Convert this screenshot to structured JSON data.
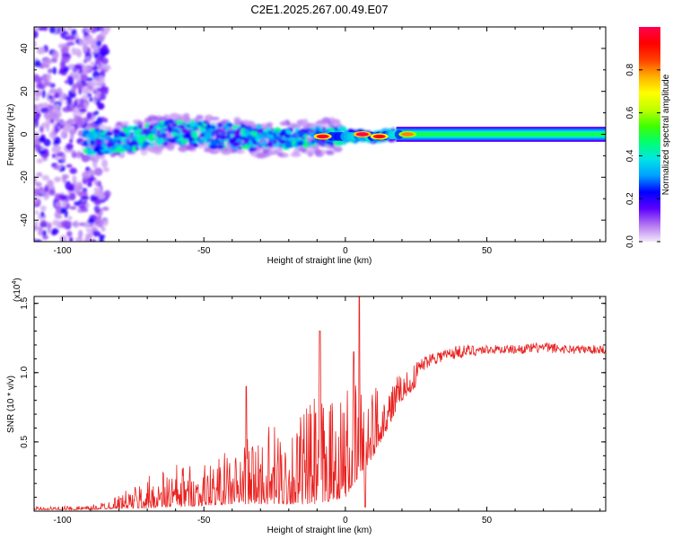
{
  "title": "C2E1.2025.267.00.49.E07",
  "chart_data": [
    {
      "type": "heatmap",
      "title": "C2E1.2025.267.00.49.E07",
      "xlabel": "Height of straight line (km)",
      "ylabel": "Frequency (Hz)",
      "xlim": [
        -110,
        92
      ],
      "ylim": [
        -50,
        50
      ],
      "xticks": [
        -100,
        -50,
        0,
        50
      ],
      "yticks": [
        -40,
        -20,
        0,
        20,
        40
      ],
      "colorbar": {
        "label": "Normalized spectral amplitude",
        "range": [
          0,
          1
        ],
        "ticks": [
          "0.0",
          "0.2",
          "0.4",
          "0.6",
          "0.8"
        ],
        "colors": [
          "#f4e8fb",
          "#b377f0",
          "#5d00ff",
          "#0000ff",
          "#00a0ff",
          "#00e5e5",
          "#00ff70",
          "#40ff00",
          "#c0ff00",
          "#ffff00",
          "#ffb000",
          "#ff4000",
          "#ff0000",
          "#ff0050"
        ]
      },
      "ridge_center_hz": [
        {
          "x": -92,
          "y": -4
        },
        {
          "x": -80,
          "y": -3
        },
        {
          "x": -70,
          "y": -1
        },
        {
          "x": -60,
          "y": 1
        },
        {
          "x": -50,
          "y": 0
        },
        {
          "x": -40,
          "y": -1
        },
        {
          "x": -30,
          "y": -2
        },
        {
          "x": -20,
          "y": -2
        },
        {
          "x": -10,
          "y": -1
        },
        {
          "x": 0,
          "y": -1
        },
        {
          "x": 10,
          "y": -1
        },
        {
          "x": 20,
          "y": 0
        },
        {
          "x": 40,
          "y": 0
        },
        {
          "x": 60,
          "y": 0
        },
        {
          "x": 92,
          "y": 0
        }
      ],
      "hotspots": [
        {
          "x": -8,
          "y": -1,
          "amp": 0.95
        },
        {
          "x": 6,
          "y": 0,
          "amp": 1.0
        },
        {
          "x": 12,
          "y": -1,
          "amp": 0.92
        },
        {
          "x": 22,
          "y": 0,
          "amp": 0.8
        }
      ]
    },
    {
      "type": "line",
      "xlabel": "Height of straight line (km)",
      "ylabel": "SNR (10 * v/v)",
      "yscale_label": "(x10",
      "yscale_exp": "4",
      "xlim": [
        -110,
        92
      ],
      "ylim": [
        0,
        1.55
      ],
      "xticks": [
        -100,
        -50,
        0,
        50
      ],
      "yticks": [
        "0.5",
        "1.0",
        "1.5"
      ],
      "color": "#e8211f",
      "envelope": [
        {
          "x": -110,
          "low": 0.01,
          "high": 0.03
        },
        {
          "x": -90,
          "low": 0.01,
          "high": 0.04
        },
        {
          "x": -80,
          "low": 0.02,
          "high": 0.12
        },
        {
          "x": -70,
          "low": 0.02,
          "high": 0.25
        },
        {
          "x": -60,
          "low": 0.03,
          "high": 0.35
        },
        {
          "x": -50,
          "low": 0.04,
          "high": 0.35
        },
        {
          "x": -40,
          "low": 0.05,
          "high": 0.45
        },
        {
          "x": -30,
          "low": 0.05,
          "high": 0.6
        },
        {
          "x": -20,
          "low": 0.05,
          "high": 0.65
        },
        {
          "x": -10,
          "low": 0.05,
          "high": 0.85
        },
        {
          "x": 0,
          "low": 0.1,
          "high": 0.9
        },
        {
          "x": 10,
          "low": 0.4,
          "high": 0.95
        },
        {
          "x": 20,
          "low": 0.8,
          "high": 1.0
        },
        {
          "x": 30,
          "low": 1.0,
          "high": 1.15
        },
        {
          "x": 40,
          "low": 1.05,
          "high": 1.2
        },
        {
          "x": 50,
          "low": 1.1,
          "high": 1.2
        },
        {
          "x": 60,
          "low": 1.1,
          "high": 1.2
        },
        {
          "x": 70,
          "low": 1.1,
          "high": 1.22
        },
        {
          "x": 80,
          "low": 1.1,
          "high": 1.2
        },
        {
          "x": 92,
          "low": 1.1,
          "high": 1.2
        }
      ],
      "spikes": [
        {
          "x": -9,
          "y": 1.3
        },
        {
          "x": 5,
          "y": 1.55
        },
        {
          "x": 7,
          "y": 0.03
        },
        {
          "x": 3,
          "y": 1.15
        },
        {
          "x": -35,
          "y": 0.9
        }
      ]
    }
  ]
}
